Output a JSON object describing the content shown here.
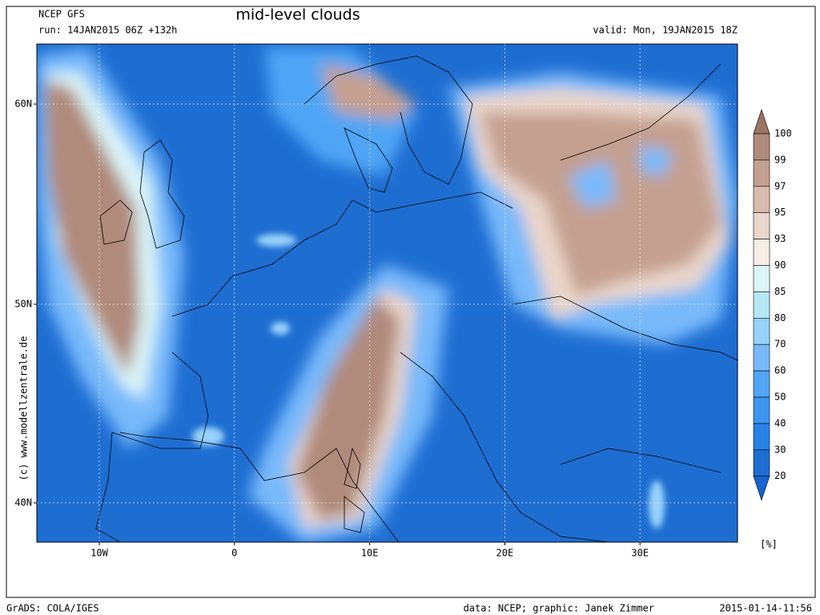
{
  "header": {
    "model": "NCEP GFS",
    "run": "run: 14JAN2015 06Z +132h",
    "title": "mid-level clouds",
    "valid": "valid: Mon, 19JAN2015 18Z"
  },
  "map": {
    "lat_labels": [
      "60N",
      "50N",
      "40N"
    ],
    "lon_labels": [
      "10W",
      "0",
      "10E",
      "20E",
      "30E"
    ]
  },
  "colorbar": {
    "levels": [
      100,
      99,
      97,
      95,
      93,
      90,
      85,
      80,
      70,
      60,
      50,
      40,
      30,
      20
    ],
    "colors": [
      "#9b7463",
      "#b08a7a",
      "#c4a090",
      "#d9bbad",
      "#ead6cb",
      "#f5ede6",
      "#dcf6f8",
      "#b4e8f5",
      "#96d2fa",
      "#78b9fa",
      "#50a5f5",
      "#3c96f0",
      "#2882e6",
      "#1e6ed2",
      "#1464d2"
    ],
    "unit": "[%]"
  },
  "credit": "(c) www.modellzentrale.de",
  "footer": {
    "left": "GrADS: COLA/IGES",
    "center": "data: NCEP; graphic: Janek Zimmer",
    "right": "2015-01-14-11:56"
  }
}
